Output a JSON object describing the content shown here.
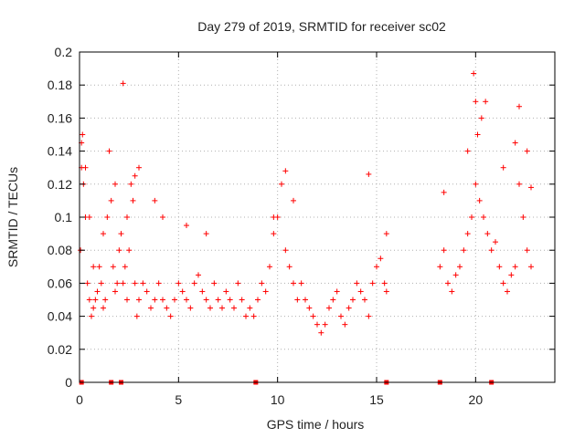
{
  "chart_data": {
    "type": "scatter",
    "title": "Day 279 of 2019, SRMTID for receiver sc02",
    "xlabel": "GPS time / hours",
    "ylabel": "SRMTID / TECUs",
    "xlim": [
      0,
      24
    ],
    "ylim": [
      0,
      0.2
    ],
    "xticks": [
      0,
      5,
      10,
      15,
      20
    ],
    "yticks": [
      0,
      0.02,
      0.04,
      0.06,
      0.08,
      0.1,
      0.12,
      0.14,
      0.16,
      0.18,
      0.2
    ],
    "xtick_labels": [
      "0",
      "5",
      "10",
      "15",
      "20"
    ],
    "ytick_labels": [
      "0",
      "0.02",
      "0.04",
      "0.06",
      "0.08",
      "0.1",
      "0.12",
      "0.14",
      "0.16",
      "0.18",
      "0.2"
    ],
    "grid": true,
    "marker": "+",
    "color": "#ff0000",
    "series": [
      {
        "name": "SRMTID",
        "x": [
          0.05,
          0.1,
          0.15,
          0.2,
          0.3,
          0.4,
          0.5,
          0.6,
          0.7,
          0.8,
          0.9,
          1.0,
          1.1,
          1.2,
          1.3,
          1.4,
          1.5,
          1.6,
          1.7,
          1.8,
          1.9,
          2.0,
          2.1,
          2.2,
          2.3,
          2.4,
          2.5,
          2.6,
          2.7,
          2.8,
          2.9,
          3.0,
          3.2,
          3.4,
          3.6,
          3.8,
          4.0,
          4.2,
          4.4,
          4.6,
          4.8,
          5.0,
          5.2,
          5.4,
          5.6,
          5.8,
          6.0,
          6.2,
          6.4,
          6.6,
          6.8,
          7.0,
          7.2,
          7.4,
          7.6,
          7.8,
          8.0,
          8.2,
          8.4,
          8.6,
          8.8,
          9.0,
          9.2,
          9.4,
          9.6,
          9.8,
          10.0,
          10.2,
          10.4,
          10.6,
          10.8,
          11.0,
          11.2,
          11.4,
          11.6,
          11.8,
          12.0,
          12.2,
          12.4,
          12.6,
          12.8,
          13.0,
          13.2,
          13.4,
          13.6,
          13.8,
          14.0,
          14.2,
          14.4,
          14.6,
          14.8,
          15.0,
          15.2,
          15.4,
          15.5,
          18.2,
          18.4,
          18.6,
          18.8,
          19.0,
          19.2,
          19.4,
          19.6,
          19.8,
          20.0,
          20.1,
          20.2,
          20.4,
          20.6,
          20.8,
          21.0,
          21.2,
          21.4,
          21.6,
          21.8,
          22.0,
          22.2,
          22.4,
          22.6,
          22.8,
          0.1,
          0.3,
          0.5,
          0.7,
          1.2,
          1.8,
          2.2,
          2.4,
          2.8,
          3.0,
          3.8,
          4.2,
          5.4,
          6.4,
          9.8,
          10.4,
          10.8,
          14.6,
          15.5,
          18.4,
          19.6,
          19.9,
          20.0,
          20.3,
          20.5,
          21.4,
          22.0,
          22.2,
          22.6,
          22.8
        ],
        "y": [
          0.08,
          0.13,
          0.15,
          0.12,
          0.1,
          0.06,
          0.05,
          0.04,
          0.045,
          0.05,
          0.055,
          0.07,
          0.06,
          0.045,
          0.05,
          0.1,
          0.14,
          0.11,
          0.07,
          0.055,
          0.06,
          0.08,
          0.09,
          0.06,
          0.07,
          0.05,
          0.08,
          0.12,
          0.11,
          0.06,
          0.04,
          0.05,
          0.06,
          0.055,
          0.045,
          0.05,
          0.06,
          0.05,
          0.045,
          0.04,
          0.05,
          0.06,
          0.055,
          0.05,
          0.045,
          0.06,
          0.065,
          0.055,
          0.05,
          0.045,
          0.06,
          0.05,
          0.045,
          0.055,
          0.05,
          0.045,
          0.06,
          0.05,
          0.04,
          0.045,
          0.04,
          0.05,
          0.06,
          0.055,
          0.07,
          0.09,
          0.1,
          0.12,
          0.08,
          0.07,
          0.06,
          0.05,
          0.06,
          0.05,
          0.045,
          0.04,
          0.035,
          0.03,
          0.035,
          0.045,
          0.05,
          0.055,
          0.04,
          0.035,
          0.045,
          0.05,
          0.06,
          0.055,
          0.05,
          0.04,
          0.06,
          0.07,
          0.075,
          0.06,
          0.055,
          0.07,
          0.08,
          0.06,
          0.055,
          0.065,
          0.07,
          0.08,
          0.09,
          0.1,
          0.12,
          0.15,
          0.11,
          0.1,
          0.09,
          0.08,
          0.085,
          0.07,
          0.06,
          0.055,
          0.065,
          0.07,
          0.12,
          0.1,
          0.08,
          0.07,
          0.145,
          0.13,
          0.1,
          0.07,
          0.09,
          0.12,
          0.181,
          0.1,
          0.125,
          0.13,
          0.11,
          0.1,
          0.095,
          0.09,
          0.1,
          0.128,
          0.11,
          0.126,
          0.09,
          0.115,
          0.14,
          0.187,
          0.17,
          0.16,
          0.17,
          0.13,
          0.145,
          0.167,
          0.14,
          0.118
        ]
      }
    ],
    "floor_marks_x": [
      0.1,
      1.6,
      2.1,
      8.9,
      15.5,
      18.2,
      20.8
    ]
  }
}
